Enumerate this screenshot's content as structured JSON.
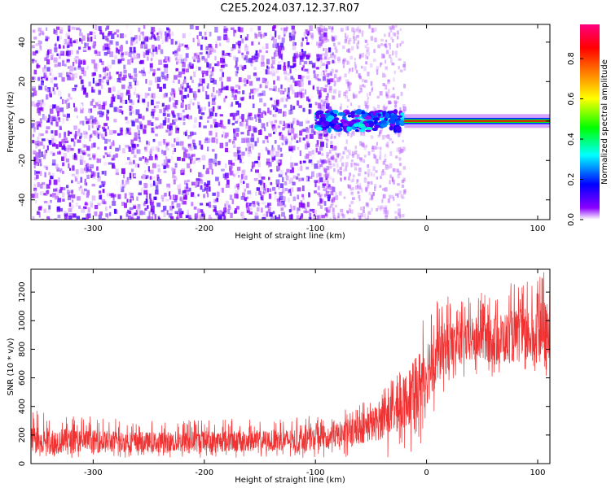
{
  "chart_data": [
    {
      "type": "heatmap",
      "title": "C2E5.2024.037.12.37.R07",
      "xlabel": "Height of straight line (km)",
      "ylabel": "Frequency (Hz)",
      "xlim": [
        -356,
        111
      ],
      "ylim": [
        -50,
        49
      ],
      "xticks": [
        -300,
        -200,
        -100,
        0,
        100
      ],
      "xtick_labels": [
        "-300",
        "-200",
        "-100",
        "0",
        "100"
      ],
      "yticks": [
        -40,
        -20,
        0,
        20,
        40
      ],
      "ytick_labels": [
        "-40",
        "-20",
        "0",
        "20",
        "40"
      ],
      "colorbar": {
        "label": "Normalized spectral amplitude",
        "range": [
          0,
          0.97
        ],
        "ticks": [
          0.0,
          0.2,
          0.4,
          0.6,
          0.8
        ],
        "tick_labels": [
          "0.0",
          "0.2",
          "0.4",
          "0.6",
          "0.8"
        ],
        "colormap": [
          "#ffffff",
          "#8b00ff",
          "#0000ff",
          "#00ffff",
          "#00ff00",
          "#ffff00",
          "#ff8000",
          "#ff0000",
          "#ff0080"
        ]
      },
      "regions": [
        {
          "x_range": [
            -356,
            -100
          ],
          "freq_range": [
            -49,
            49
          ],
          "amplitude": 0.05,
          "pattern": "broadband noise"
        },
        {
          "x_range": [
            -100,
            -20
          ],
          "freq_range": [
            -5,
            5
          ],
          "amplitude": 0.3,
          "pattern": "clustered energy near 0 Hz"
        },
        {
          "x_range": [
            -20,
            111
          ],
          "freq_range": [
            -2,
            2
          ],
          "amplitude": 0.85,
          "pattern": "narrow band at 0 Hz"
        }
      ]
    },
    {
      "type": "line",
      "title": "",
      "xlabel": "Height of straight line (km)",
      "ylabel": "SNR (10 * v/v)",
      "xlim": [
        -356,
        111
      ],
      "ylim": [
        0,
        1360
      ],
      "xticks": [
        -300,
        -200,
        -100,
        0,
        100
      ],
      "xtick_labels": [
        "-300",
        "-200",
        "-100",
        "0",
        "100"
      ],
      "yticks": [
        0,
        200,
        400,
        600,
        800,
        1000,
        1200
      ],
      "ytick_labels": [
        "0",
        "200",
        "400",
        "600",
        "800",
        "1000",
        "1200"
      ],
      "color": "#f03232",
      "series": [
        {
          "name": "SNR",
          "x": [
            -356,
            -300,
            -250,
            -200,
            -150,
            -120,
            -100,
            -80,
            -60,
            -40,
            -30,
            -20,
            -10,
            0,
            10,
            20,
            30,
            50,
            70,
            90,
            111
          ],
          "y_low": [
            30,
            40,
            40,
            40,
            40,
            40,
            40,
            40,
            40,
            40,
            40,
            30,
            60,
            200,
            400,
            550,
            600,
            600,
            600,
            600,
            550
          ],
          "y_high": [
            380,
            330,
            300,
            320,
            310,
            320,
            340,
            360,
            420,
            520,
            600,
            700,
            850,
            1100,
            1150,
            1200,
            1150,
            1200,
            1250,
            1300,
            1360
          ],
          "y_mean": [
            160,
            155,
            150,
            155,
            160,
            165,
            175,
            200,
            240,
            300,
            360,
            430,
            520,
            650,
            760,
            820,
            850,
            870,
            880,
            900,
            920
          ]
        }
      ]
    }
  ]
}
